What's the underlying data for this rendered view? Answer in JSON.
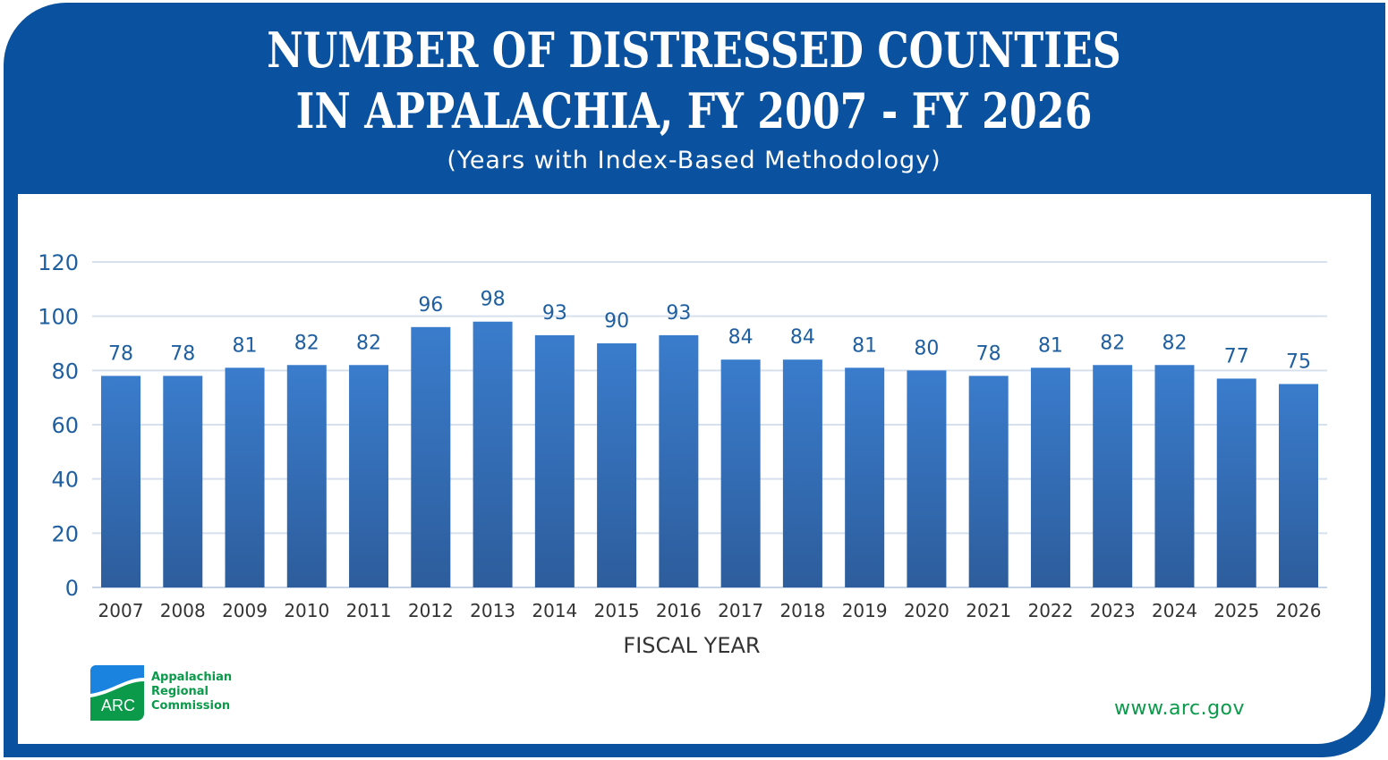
{
  "chart_data": {
    "type": "bar",
    "title": "NUMBER OF DISTRESSED COUNTIES IN APPALACHIA, FY 2007 - FY 2026",
    "title_lines": [
      "NUMBER OF DISTRESSED COUNTIES",
      "IN APPALACHIA, FY 2007 - FY 2026"
    ],
    "subtitle": "(Years with Index-Based Methodology)",
    "xlabel": "FISCAL YEAR",
    "ylabel": "",
    "categories": [
      "2007",
      "2008",
      "2009",
      "2010",
      "2011",
      "2012",
      "2013",
      "2014",
      "2015",
      "2016",
      "2017",
      "2018",
      "2019",
      "2020",
      "2021",
      "2022",
      "2023",
      "2024",
      "2025",
      "2026"
    ],
    "values": [
      78,
      78,
      81,
      82,
      82,
      96,
      98,
      93,
      90,
      93,
      84,
      84,
      81,
      80,
      78,
      81,
      82,
      82,
      77,
      75
    ],
    "ylim": [
      0,
      120
    ],
    "yticks": [
      0,
      20,
      40,
      60,
      80,
      100,
      120
    ],
    "grid": true,
    "bar_color": "#3a7ccc",
    "bar_color_bottom": "#2d5d9c",
    "label_color": "#1f5fa0",
    "frame_color": "#0a529f"
  },
  "branding": {
    "logo_mark": "ARC",
    "logo_lines": [
      "Appalachian",
      "Regional",
      "Commission"
    ],
    "url": "www.arc.gov",
    "brand_green": "#0a9a4a",
    "brand_blue": "#1a83e0"
  }
}
